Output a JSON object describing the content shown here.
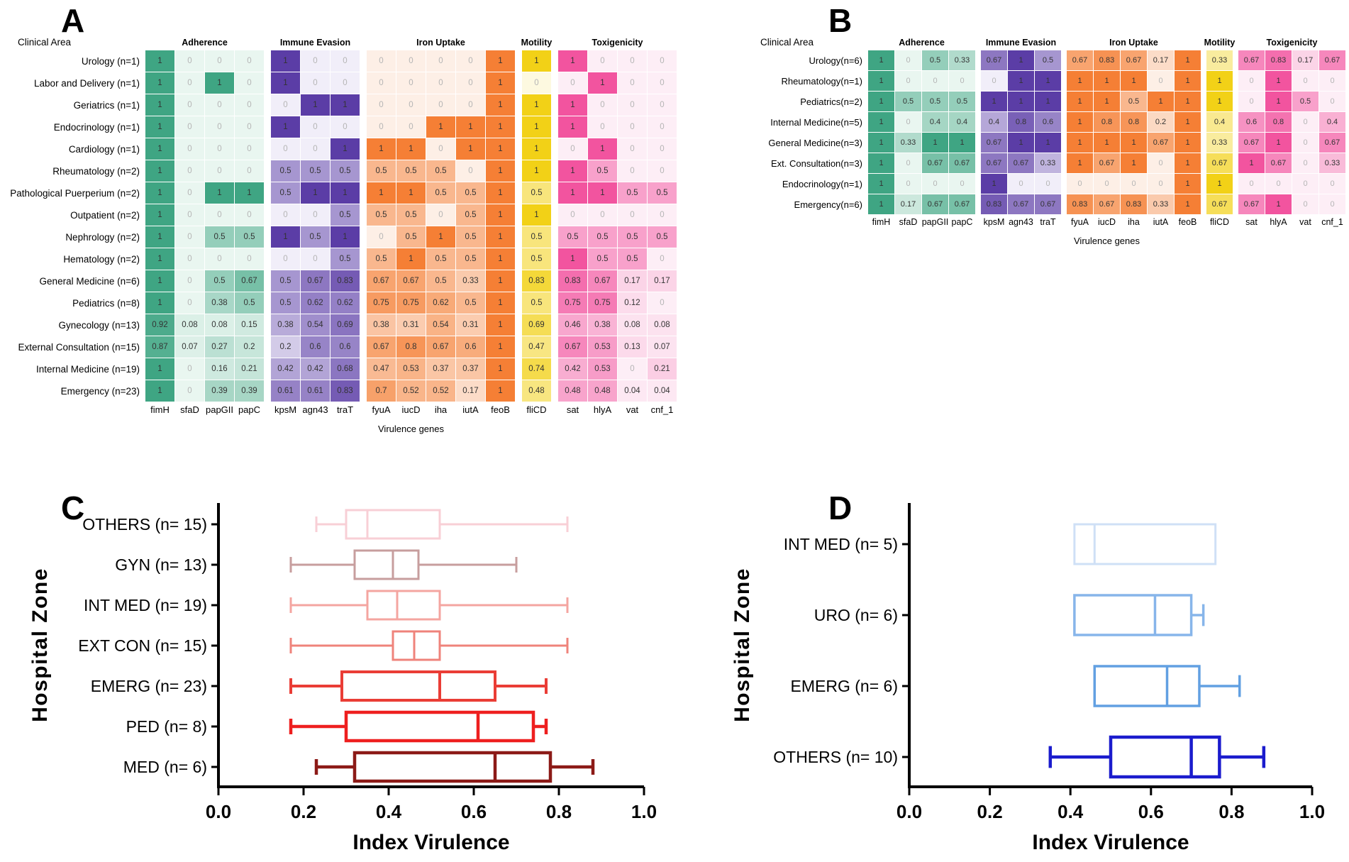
{
  "panel_labels": {
    "A": "A",
    "B": "B",
    "C": "C",
    "D": "D"
  },
  "heatmap_axis": {
    "row_title": "Clinical Area",
    "x_title": "Virulence genes"
  },
  "gene_groups": [
    {
      "name": "Adherence",
      "genes": [
        "fimH",
        "sfaD",
        "papGII",
        "papC"
      ],
      "color_light": "#e9f6f0",
      "color_dark": "#3fa583"
    },
    {
      "name": "Immune Evasion",
      "genes": [
        "kpsM",
        "agn43",
        "traT"
      ],
      "color_light": "#f1eef9",
      "color_dark": "#5b3da6"
    },
    {
      "name": "Iron Uptake",
      "genes": [
        "fyuA",
        "iucD",
        "iha",
        "iutA",
        "feoB"
      ],
      "color_light": "#fdefe6",
      "color_dark": "#f57f35"
    },
    {
      "name": "Motility",
      "genes": [
        "fliCD"
      ],
      "color_light": "#fdf9e0",
      "color_dark": "#f2d117"
    },
    {
      "name": "Toxigenicity",
      "genes": [
        "sat",
        "hlyA",
        "vat",
        "cnf_1"
      ],
      "color_light": "#fdeef6",
      "color_dark": "#f2549f"
    }
  ],
  "text_colors": {
    "zero": "#b5b5b5",
    "value": "#333333"
  },
  "chart_data": [
    {
      "type": "heatmap",
      "panel": "A",
      "rows": [
        {
          "label": "Urology (n=1)",
          "values": [
            "1",
            "0",
            "0",
            "0",
            "1",
            "0",
            "0",
            "0",
            "0",
            "0",
            "0",
            "1",
            "1",
            "1",
            "0",
            "0",
            "0"
          ]
        },
        {
          "label": "Labor and Delivery (n=1)",
          "values": [
            "1",
            "0",
            "1",
            "0",
            "1",
            "0",
            "0",
            "0",
            "0",
            "0",
            "0",
            "1",
            "0",
            "0",
            "1",
            "0",
            "0"
          ]
        },
        {
          "label": "Geriatrics (n=1)",
          "values": [
            "1",
            "0",
            "0",
            "0",
            "0",
            "1",
            "1",
            "0",
            "0",
            "0",
            "0",
            "1",
            "1",
            "1",
            "0",
            "0",
            "0"
          ]
        },
        {
          "label": "Endocrinology (n=1)",
          "values": [
            "1",
            "0",
            "0",
            "0",
            "1",
            "0",
            "0",
            "0",
            "0",
            "1",
            "1",
            "1",
            "1",
            "1",
            "0",
            "0",
            "0"
          ]
        },
        {
          "label": "Cardiology (n=1)",
          "values": [
            "1",
            "0",
            "0",
            "0",
            "0",
            "0",
            "1",
            "1",
            "1",
            "0",
            "1",
            "1",
            "1",
            "0",
            "1",
            "0",
            "0"
          ]
        },
        {
          "label": "Rheumatology (n=2)",
          "values": [
            "1",
            "0",
            "0",
            "0",
            "0.5",
            "0.5",
            "0.5",
            "0.5",
            "0.5",
            "0.5",
            "0",
            "1",
            "1",
            "1",
            "0.5",
            "0",
            "0"
          ]
        },
        {
          "label": "Pathological Puerperium (n=2)",
          "values": [
            "1",
            "0",
            "1",
            "1",
            "0.5",
            "1",
            "1",
            "1",
            "1",
            "0.5",
            "0.5",
            "1",
            "0.5",
            "1",
            "1",
            "0.5",
            "0.5"
          ]
        },
        {
          "label": "Outpatient (n=2)",
          "values": [
            "1",
            "0",
            "0",
            "0",
            "0",
            "0",
            "0.5",
            "0.5",
            "0.5",
            "0",
            "0.5",
            "1",
            "1",
            "0",
            "0",
            "0",
            "0"
          ]
        },
        {
          "label": "Nephrology (n=2)",
          "values": [
            "1",
            "0",
            "0.5",
            "0.5",
            "1",
            "0.5",
            "1",
            "0",
            "0.5",
            "1",
            "0.5",
            "1",
            "0.5",
            "0.5",
            "0.5",
            "0.5",
            "0.5"
          ]
        },
        {
          "label": "Hematology (n=2)",
          "values": [
            "1",
            "0",
            "0",
            "0",
            "0",
            "0",
            "0.5",
            "0.5",
            "1",
            "0.5",
            "0.5",
            "1",
            "0.5",
            "1",
            "0.5",
            "0.5",
            "0"
          ]
        },
        {
          "label": "General Medicine (n=6)",
          "values": [
            "1",
            "0",
            "0.5",
            "0.67",
            "0.5",
            "0.67",
            "0.83",
            "0.67",
            "0.67",
            "0.5",
            "0.33",
            "1",
            "0.83",
            "0.83",
            "0.67",
            "0.17",
            "0.17"
          ]
        },
        {
          "label": "Pediatrics (n=8)",
          "values": [
            "1",
            "0",
            "0.38",
            "0.5",
            "0.5",
            "0.62",
            "0.62",
            "0.75",
            "0.75",
            "0.62",
            "0.5",
            "1",
            "0.5",
            "0.75",
            "0.75",
            "0.12",
            "0"
          ]
        },
        {
          "label": "Gynecology (n=13)",
          "values": [
            "0.92",
            "0.08",
            "0.08",
            "0.15",
            "0.38",
            "0.54",
            "0.69",
            "0.38",
            "0.31",
            "0.54",
            "0.31",
            "1",
            "0.69",
            "0.46",
            "0.38",
            "0.08",
            "0.08"
          ]
        },
        {
          "label": "External Consultation (n=15)",
          "values": [
            "0.87",
            "0.07",
            "0.27",
            "0.2",
            "0.2",
            "0.6",
            "0.6",
            "0.67",
            "0.8",
            "0.67",
            "0.6",
            "1",
            "0.47",
            "0.67",
            "0.53",
            "0.13",
            "0.07"
          ]
        },
        {
          "label": "Internal Medicine (n=19)",
          "values": [
            "1",
            "0",
            "0.16",
            "0.21",
            "0.42",
            "0.42",
            "0.68",
            "0.47",
            "0.53",
            "0.37",
            "0.37",
            "1",
            "0.74",
            "0.42",
            "0.53",
            "0",
            "0.21"
          ]
        },
        {
          "label": "Emergency (n=23)",
          "values": [
            "1",
            "0",
            "0.39",
            "0.39",
            "0.61",
            "0.61",
            "0.83",
            "0.7",
            "0.52",
            "0.52",
            "0.17",
            "1",
            "0.48",
            "0.48",
            "0.48",
            "0.04",
            "0.04"
          ]
        }
      ]
    },
    {
      "type": "heatmap",
      "panel": "B",
      "rows": [
        {
          "label": "Urology(n=6)",
          "values": [
            "1",
            "0",
            "0.5",
            "0.33",
            "0.67",
            "1",
            "0.5",
            "0.67",
            "0.83",
            "0.67",
            "0.17",
            "1",
            "0.33",
            "0.67",
            "0.83",
            "0.17",
            "0.67"
          ]
        },
        {
          "label": "Rheumatology(n=1)",
          "values": [
            "1",
            "0",
            "0",
            "0",
            "0",
            "1",
            "1",
            "1",
            "1",
            "1",
            "0",
            "1",
            "1",
            "0",
            "1",
            "0",
            "0"
          ]
        },
        {
          "label": "Pediatrics(n=2)",
          "values": [
            "1",
            "0.5",
            "0.5",
            "0.5",
            "1",
            "1",
            "1",
            "1",
            "1",
            "0.5",
            "1",
            "1",
            "1",
            "0",
            "1",
            "0.5",
            "0"
          ]
        },
        {
          "label": "Internal Medicine(n=5)",
          "values": [
            "1",
            "0",
            "0.4",
            "0.4",
            "0.4",
            "0.8",
            "0.6",
            "1",
            "0.8",
            "0.8",
            "0.2",
            "1",
            "0.4",
            "0.6",
            "0.8",
            "0",
            "0.4"
          ]
        },
        {
          "label": "General Medicine(n=3)",
          "values": [
            "1",
            "0.33",
            "1",
            "1",
            "0.67",
            "1",
            "1",
            "1",
            "1",
            "1",
            "0.67",
            "1",
            "0.33",
            "0.67",
            "1",
            "0",
            "0.67"
          ]
        },
        {
          "label": "Ext. Consultation(n=3)",
          "values": [
            "1",
            "0",
            "0.67",
            "0.67",
            "0.67",
            "0.67",
            "0.33",
            "1",
            "0.67",
            "1",
            "0",
            "1",
            "0.67",
            "1",
            "0.67",
            "0",
            "0.33"
          ]
        },
        {
          "label": "Endocrinology(n=1)",
          "values": [
            "1",
            "0",
            "0",
            "0",
            "1",
            "0",
            "0",
            "0",
            "0",
            "0",
            "0",
            "1",
            "1",
            "0",
            "0",
            "0",
            "0"
          ]
        },
        {
          "label": "Emergency(n=6)",
          "values": [
            "1",
            "0.17",
            "0.67",
            "0.67",
            "0.83",
            "0.67",
            "0.67",
            "0.83",
            "0.67",
            "0.83",
            "0.33",
            "1",
            "0.67",
            "0.67",
            "1",
            "0",
            "0"
          ]
        }
      ]
    },
    {
      "type": "boxplot",
      "panel": "C",
      "xlabel": "Index Virulence",
      "ylabel": "Hospital  Zone",
      "xlim": [
        0,
        1
      ],
      "xticks": [
        "0.0",
        "0.2",
        "0.4",
        "0.6",
        "0.8",
        "1.0"
      ],
      "series": [
        {
          "label": "OTHERS (n= 15)",
          "color": "#f8cfd6",
          "lw": 3,
          "low": 0.23,
          "q1": 0.3,
          "median": 0.35,
          "q3": 0.52,
          "high": 0.82
        },
        {
          "label": "GYN (n= 13)",
          "color": "#c79e9e",
          "lw": 3,
          "low": 0.17,
          "q1": 0.32,
          "median": 0.41,
          "q3": 0.47,
          "high": 0.7
        },
        {
          "label": "INT MED (n= 19)",
          "color": "#f4a5a0",
          "lw": 3,
          "low": 0.17,
          "q1": 0.35,
          "median": 0.42,
          "q3": 0.52,
          "high": 0.82
        },
        {
          "label": "EXT CON (n= 15)",
          "color": "#ef837b",
          "lw": 3,
          "low": 0.17,
          "q1": 0.41,
          "median": 0.46,
          "q3": 0.52,
          "high": 0.82
        },
        {
          "label": "EMERG (n= 23)",
          "color": "#ea3d36",
          "lw": 4,
          "low": 0.17,
          "q1": 0.29,
          "median": 0.52,
          "q3": 0.65,
          "high": 0.77
        },
        {
          "label": "PED (n= 8)",
          "color": "#ee1f1f",
          "lw": 4.5,
          "low": 0.17,
          "q1": 0.3,
          "median": 0.61,
          "q3": 0.74,
          "high": 0.77
        },
        {
          "label": "MED (n= 6)",
          "color": "#8c1a17",
          "lw": 4.5,
          "low": 0.23,
          "q1": 0.32,
          "median": 0.65,
          "q3": 0.78,
          "high": 0.88
        }
      ]
    },
    {
      "type": "boxplot",
      "panel": "D",
      "xlabel": "Index Virulence",
      "ylabel": "Hospital  Zone",
      "xlim": [
        0,
        1
      ],
      "xticks": [
        "0.0",
        "0.2",
        "0.4",
        "0.6",
        "0.8",
        "1.0"
      ],
      "series": [
        {
          "label": "INT MED (n= 5)",
          "color": "#cfe0f6",
          "lw": 3,
          "low": 0.41,
          "q1": 0.41,
          "median": 0.46,
          "q3": 0.76,
          "high": 0.76
        },
        {
          "label": "URO (n= 6)",
          "color": "#87b5ea",
          "lw": 3.5,
          "low": 0.41,
          "q1": 0.41,
          "median": 0.61,
          "q3": 0.7,
          "high": 0.73
        },
        {
          "label": "EMERG (n= 6)",
          "color": "#62a0e2",
          "lw": 3.5,
          "low": 0.46,
          "q1": 0.46,
          "median": 0.64,
          "q3": 0.72,
          "high": 0.82
        },
        {
          "label": "OTHERS (n= 10)",
          "color": "#1b1ccd",
          "lw": 4.5,
          "low": 0.35,
          "q1": 0.5,
          "median": 0.7,
          "q3": 0.77,
          "high": 0.88
        }
      ]
    }
  ]
}
